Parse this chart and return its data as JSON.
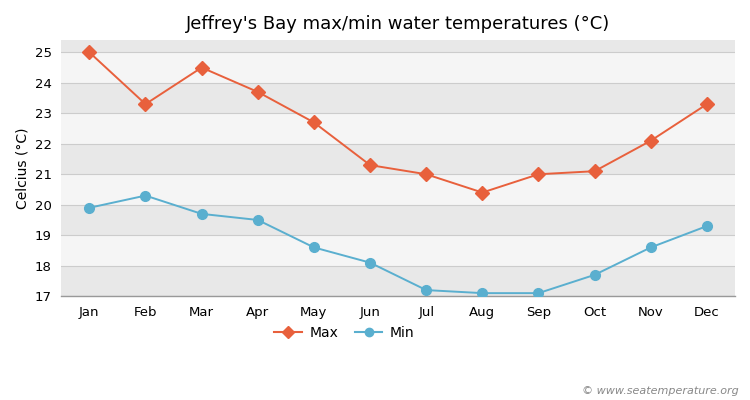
{
  "title": "Jeffrey's Bay max/min water temperatures (°C)",
  "ylabel": "Celcius (°C)",
  "watermark": "© www.seatemperature.org",
  "months": [
    "Jan",
    "Feb",
    "Mar",
    "Apr",
    "May",
    "Jun",
    "Jul",
    "Aug",
    "Sep",
    "Oct",
    "Nov",
    "Dec"
  ],
  "max_temps": [
    25.0,
    23.3,
    24.5,
    23.7,
    22.7,
    21.3,
    21.0,
    20.4,
    21.0,
    21.1,
    22.1,
    23.3
  ],
  "min_temps": [
    19.9,
    20.3,
    19.7,
    19.5,
    18.6,
    18.1,
    17.2,
    17.1,
    17.1,
    17.7,
    18.6,
    19.3
  ],
  "max_color": "#e8603c",
  "min_color": "#5aafcf",
  "max_marker": "D",
  "min_marker": "o",
  "background_color": "#ffffff",
  "band_color_light": "#f5f5f5",
  "band_color_dark": "#e8e8e8",
  "grid_color": "#cccccc",
  "ylim_min": 17.0,
  "ylim_max": 25.4,
  "yticks": [
    17,
    18,
    19,
    20,
    21,
    22,
    23,
    24,
    25
  ],
  "legend_labels": [
    "Max",
    "Min"
  ],
  "title_fontsize": 13,
  "axis_label_fontsize": 10,
  "tick_fontsize": 9.5,
  "legend_fontsize": 10,
  "watermark_fontsize": 8
}
